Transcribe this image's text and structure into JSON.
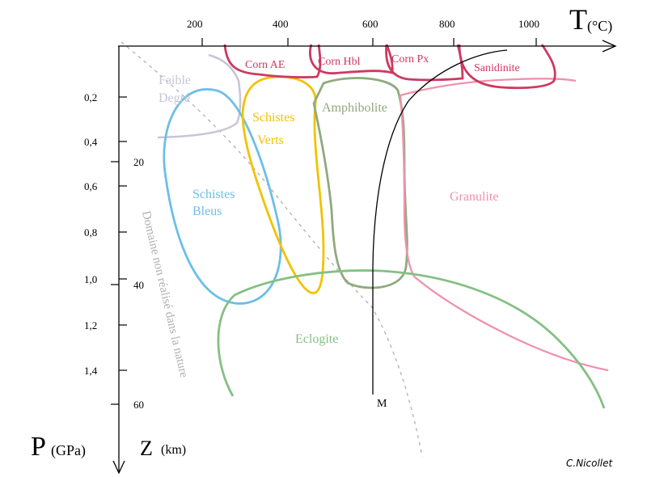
{
  "axes": {
    "temperature_symbol": "T",
    "temperature_unit": "(°C)",
    "temperature_ticks": [
      "200",
      "400",
      "600",
      "800",
      "1000"
    ],
    "pressure_symbol": "P",
    "pressure_unit": "(GPa)",
    "pressure_ticks": [
      "0,2",
      "0,4",
      "0,6",
      "0,8",
      "1,0",
      "1,2",
      "1,4"
    ],
    "depth_symbol": "Z",
    "depth_unit": "(km)",
    "depth_ticks": [
      "20",
      "40",
      "60"
    ]
  },
  "facies": {
    "corn_ae": "Corn AE",
    "corn_hbl": "Corn Hbl",
    "corn_px": "Corn Px",
    "sanidinite": "Sanidinite",
    "faible_line1": "Faible",
    "faible_line2": "Degré",
    "schistes_verts_line1": "Schistes",
    "schistes_verts_line2": "Verts",
    "amphibolite": "Amphibolite",
    "schistes_bleus_line1": "Schistes",
    "schistes_bleus_line2": "Bleus",
    "granulite": "Granulite",
    "eclogite": "Eclogite"
  },
  "annotations": {
    "domaine_non_realise": "Domaine non réalisé dans la nature",
    "melting_curve_label": "M"
  },
  "credit": "C.Nicollet",
  "colors": {
    "axis": "#000000",
    "contact": "#cc3a60",
    "faible_degre": "#c8c4d8",
    "schistes_verts": "#f2c200",
    "amphibolite": "#8faa7e",
    "schistes_bleus": "#6cbfe6",
    "granulite": "#ee92ad",
    "eclogite": "#84c084",
    "domaine": "#b0b0b0"
  }
}
